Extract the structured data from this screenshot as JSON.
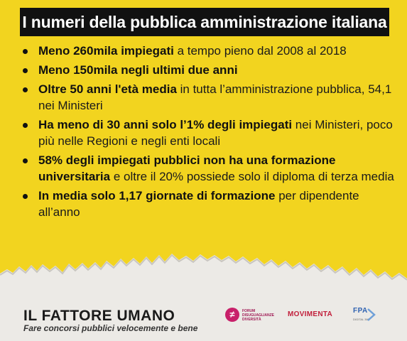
{
  "title": "I numeri della pubblica amministrazione italiana",
  "bullets": [
    {
      "bold": "Meno 260mila impiegati",
      "rest": " a tempo pieno dal 2008 al 2018"
    },
    {
      "bold": "Meno 150mila negli ultimi due anni",
      "rest": ""
    },
    {
      "bold": "Oltre 50 anni l'età media",
      "rest": " in tutta l’amministrazione pubblica, 54,1 nei Ministeri"
    },
    {
      "bold": "Ha meno di 30 anni solo l’1% degli impiegati",
      "rest": " nei Ministeri, poco più nelle Regioni e negli enti locali"
    },
    {
      "bold": "58% degli impiegati pubblici non ha una formazione universitaria",
      "rest": " e oltre il 20% possiede solo il diploma di terza media"
    },
    {
      "bold": "In media solo 1,17 giornate di formazione",
      "rest": " per dipendente all’anno"
    }
  ],
  "footer": {
    "title": "IL FATTORE UMANO",
    "subtitle": "Fare concorsi pubblici velocemente e bene"
  },
  "logos": {
    "forum": "FORUM DISUGUAGLIANZE DIVERSITÀ",
    "movimenta": "MOVIMENTA",
    "fpa": "FPA",
    "fpa_sub": "DIGITAL 360"
  },
  "colors": {
    "background": "#f2d41f",
    "title_bar": "#111111",
    "paper": "#eceae6"
  }
}
